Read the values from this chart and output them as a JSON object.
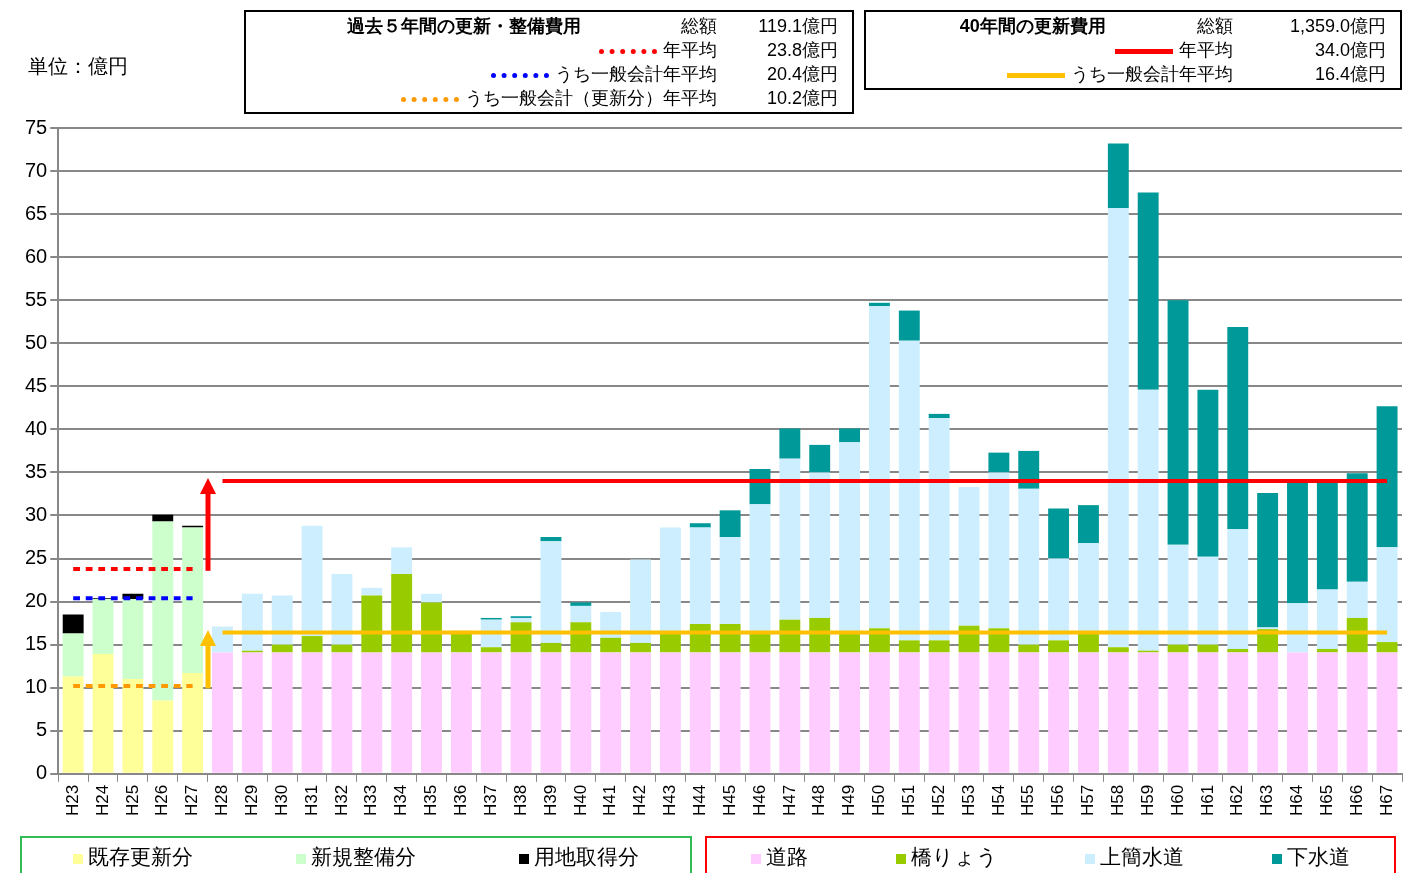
{
  "chart_data": {
    "type": "bar",
    "stacked": true,
    "ylabel": "単位：億円",
    "categories": [
      "H23",
      "H24",
      "H25",
      "H26",
      "H27",
      "H28",
      "H29",
      "H30",
      "H31",
      "H32",
      "H33",
      "H34",
      "H35",
      "H36",
      "H37",
      "H38",
      "H39",
      "H40",
      "H41",
      "H42",
      "H43",
      "H44",
      "H45",
      "H46",
      "H47",
      "H48",
      "H49",
      "H50",
      "H51",
      "H52",
      "H53",
      "H54",
      "H55",
      "H56",
      "H57",
      "H58",
      "H59",
      "H60",
      "H61",
      "H62",
      "H63",
      "H64",
      "H65",
      "H66",
      "H67"
    ],
    "series": [
      {
        "name": "既存更新分",
        "color": "#ffff99",
        "values": [
          11.3,
          13.9,
          11.0,
          8.5,
          11.7,
          null,
          null,
          null,
          null,
          null,
          null,
          null,
          null,
          null,
          null,
          null,
          null,
          null,
          null,
          null,
          null,
          null,
          null,
          null,
          null,
          null,
          null,
          null,
          null,
          null,
          null,
          null,
          null,
          null,
          null,
          null,
          null,
          null,
          null,
          null,
          null,
          null,
          null,
          null,
          null
        ]
      },
      {
        "name": "新規整備分",
        "color": "#ccffcc",
        "values": [
          5.0,
          6.4,
          9.3,
          20.8,
          16.9,
          null,
          null,
          null,
          null,
          null,
          null,
          null,
          null,
          null,
          null,
          null,
          null,
          null,
          null,
          null,
          null,
          null,
          null,
          null,
          null,
          null,
          null,
          null,
          null,
          null,
          null,
          null,
          null,
          null,
          null,
          null,
          null,
          null,
          null,
          null,
          null,
          null,
          null,
          null,
          null
        ]
      },
      {
        "name": "用地取得分",
        "color": "#000000",
        "values": [
          2.2,
          0.1,
          0.6,
          0.8,
          0.2,
          null,
          null,
          null,
          null,
          null,
          null,
          null,
          null,
          null,
          null,
          null,
          null,
          null,
          null,
          null,
          null,
          null,
          null,
          null,
          null,
          null,
          null,
          null,
          null,
          null,
          null,
          null,
          null,
          null,
          null,
          null,
          null,
          null,
          null,
          null,
          null,
          null,
          null,
          null,
          null
        ]
      },
      {
        "name": "道路",
        "color": "#ffccff",
        "values": [
          null,
          null,
          null,
          null,
          null,
          14.1,
          14.1,
          14.1,
          14.1,
          14.1,
          14.1,
          14.1,
          14.1,
          14.1,
          14.1,
          14.1,
          14.1,
          14.1,
          14.1,
          14.1,
          14.1,
          14.1,
          14.1,
          14.1,
          14.1,
          14.1,
          14.1,
          14.1,
          14.1,
          14.1,
          14.1,
          14.1,
          14.1,
          14.1,
          14.1,
          14.1,
          14.1,
          14.1,
          14.1,
          14.1,
          14.1,
          14.1,
          14.1,
          14.1,
          14.1
        ]
      },
      {
        "name": "橋りょう",
        "color": "#99cc00",
        "values": [
          null,
          null,
          null,
          null,
          null,
          0,
          0.2,
          0.9,
          1.9,
          0.9,
          6.6,
          9.1,
          5.8,
          2.5,
          0.6,
          3.5,
          1.1,
          3.5,
          1.7,
          1.1,
          2.2,
          3.3,
          3.3,
          2.2,
          3.8,
          4.0,
          2.2,
          2.8,
          1.4,
          1.4,
          3.1,
          2.8,
          0.9,
          1.4,
          2.2,
          0.6,
          0.2,
          0.9,
          0.9,
          0.4,
          2.7,
          0,
          0.4,
          4.0,
          1.2
        ]
      },
      {
        "name": "上簡水道",
        "color": "#cceeff",
        "values": [
          null,
          null,
          null,
          null,
          null,
          3.0,
          6.6,
          5.7,
          12.8,
          8.2,
          0.9,
          3.1,
          1.0,
          0,
          3.2,
          0.5,
          11.8,
          1.9,
          3.0,
          9.7,
          12.3,
          11.2,
          10.1,
          15.0,
          18.7,
          16.9,
          22.2,
          37.4,
          34.8,
          25.8,
          16.1,
          18.1,
          18.1,
          9.5,
          10.5,
          51.0,
          30.3,
          11.6,
          10.2,
          13.9,
          0.2,
          5.7,
          6.9,
          4.2,
          11.0
        ]
      },
      {
        "name": "下水道",
        "color": "#009999",
        "values": [
          null,
          null,
          null,
          null,
          null,
          0,
          0,
          0,
          0,
          0,
          0,
          0,
          0,
          0,
          0.2,
          0.2,
          0.5,
          0.4,
          0,
          0,
          0,
          0.5,
          3.1,
          4.1,
          3.5,
          3.2,
          1.6,
          0.4,
          3.5,
          0.5,
          0,
          2.3,
          4.4,
          5.8,
          4.4,
          7.5,
          22.9,
          28.4,
          19.4,
          23.5,
          15.6,
          14.0,
          12.4,
          12.6,
          16.4
        ]
      },
      {
        "name": "年平均",
        "type": "line",
        "line_style": "dotted",
        "color": "#ff0000",
        "values": [
          23.8,
          23.8,
          23.8,
          23.8,
          23.8,
          null,
          null,
          null,
          null,
          null,
          null,
          null,
          null,
          null,
          null,
          null,
          null,
          null,
          null,
          null,
          null,
          null,
          null,
          null,
          null,
          null,
          null,
          null,
          null,
          null,
          null,
          null,
          null,
          null,
          null,
          null,
          null,
          null,
          null,
          null,
          null,
          null,
          null,
          null,
          null
        ]
      },
      {
        "name": "うち一般会計年平均",
        "type": "line",
        "line_style": "dotted",
        "color": "#0000ff",
        "values": [
          20.4,
          20.4,
          20.4,
          20.4,
          20.4,
          null,
          null,
          null,
          null,
          null,
          null,
          null,
          null,
          null,
          null,
          null,
          null,
          null,
          null,
          null,
          null,
          null,
          null,
          null,
          null,
          null,
          null,
          null,
          null,
          null,
          null,
          null,
          null,
          null,
          null,
          null,
          null,
          null,
          null,
          null,
          null,
          null,
          null,
          null,
          null
        ]
      },
      {
        "name": "うち一般会計（更新分）年平均",
        "type": "line",
        "line_style": "dotted",
        "color": "#ff9900",
        "values": [
          10.2,
          10.2,
          10.2,
          10.2,
          10.2,
          null,
          null,
          null,
          null,
          null,
          null,
          null,
          null,
          null,
          null,
          null,
          null,
          null,
          null,
          null,
          null,
          null,
          null,
          null,
          null,
          null,
          null,
          null,
          null,
          null,
          null,
          null,
          null,
          null,
          null,
          null,
          null,
          null,
          null,
          null,
          null,
          null,
          null,
          null,
          null
        ]
      },
      {
        "name": "年平均",
        "type": "line",
        "line_style": "solid",
        "color": "#ff0000",
        "values": [
          null,
          null,
          null,
          null,
          null,
          34.0,
          34.0,
          34.0,
          34.0,
          34.0,
          34.0,
          34.0,
          34.0,
          34.0,
          34.0,
          34.0,
          34.0,
          34.0,
          34.0,
          34.0,
          34.0,
          34.0,
          34.0,
          34.0,
          34.0,
          34.0,
          34.0,
          34.0,
          34.0,
          34.0,
          34.0,
          34.0,
          34.0,
          34.0,
          34.0,
          34.0,
          34.0,
          34.0,
          34.0,
          34.0,
          34.0,
          34.0,
          34.0,
          34.0,
          34.0
        ]
      },
      {
        "name": "うち一般会計年平均",
        "type": "line",
        "line_style": "solid",
        "color": "#ffc000",
        "values": [
          null,
          null,
          null,
          null,
          null,
          16.4,
          16.4,
          16.4,
          16.4,
          16.4,
          16.4,
          16.4,
          16.4,
          16.4,
          16.4,
          16.4,
          16.4,
          16.4,
          16.4,
          16.4,
          16.4,
          16.4,
          16.4,
          16.4,
          16.4,
          16.4,
          16.4,
          16.4,
          16.4,
          16.4,
          16.4,
          16.4,
          16.4,
          16.4,
          16.4,
          16.4,
          16.4,
          16.4,
          16.4,
          16.4,
          16.4,
          16.4,
          16.4,
          16.4,
          16.4
        ]
      }
    ],
    "annotations": [
      "過去５年間の更新・整備費用",
      "総額",
      "119.1億円",
      "23.8億円",
      "20.4億円",
      "10.2億円",
      "40年間の更新費用",
      "総額",
      "1,359.0億円",
      "34.0億円",
      "16.4億円"
    ],
    "ylim": [
      0,
      75
    ],
    "yticks": [
      0,
      5,
      10,
      15,
      20,
      25,
      30,
      35,
      40,
      45,
      50,
      55,
      60,
      65,
      70,
      75
    ],
    "grid": "y",
    "legend": "bottom",
    "marker": "none"
  }
}
